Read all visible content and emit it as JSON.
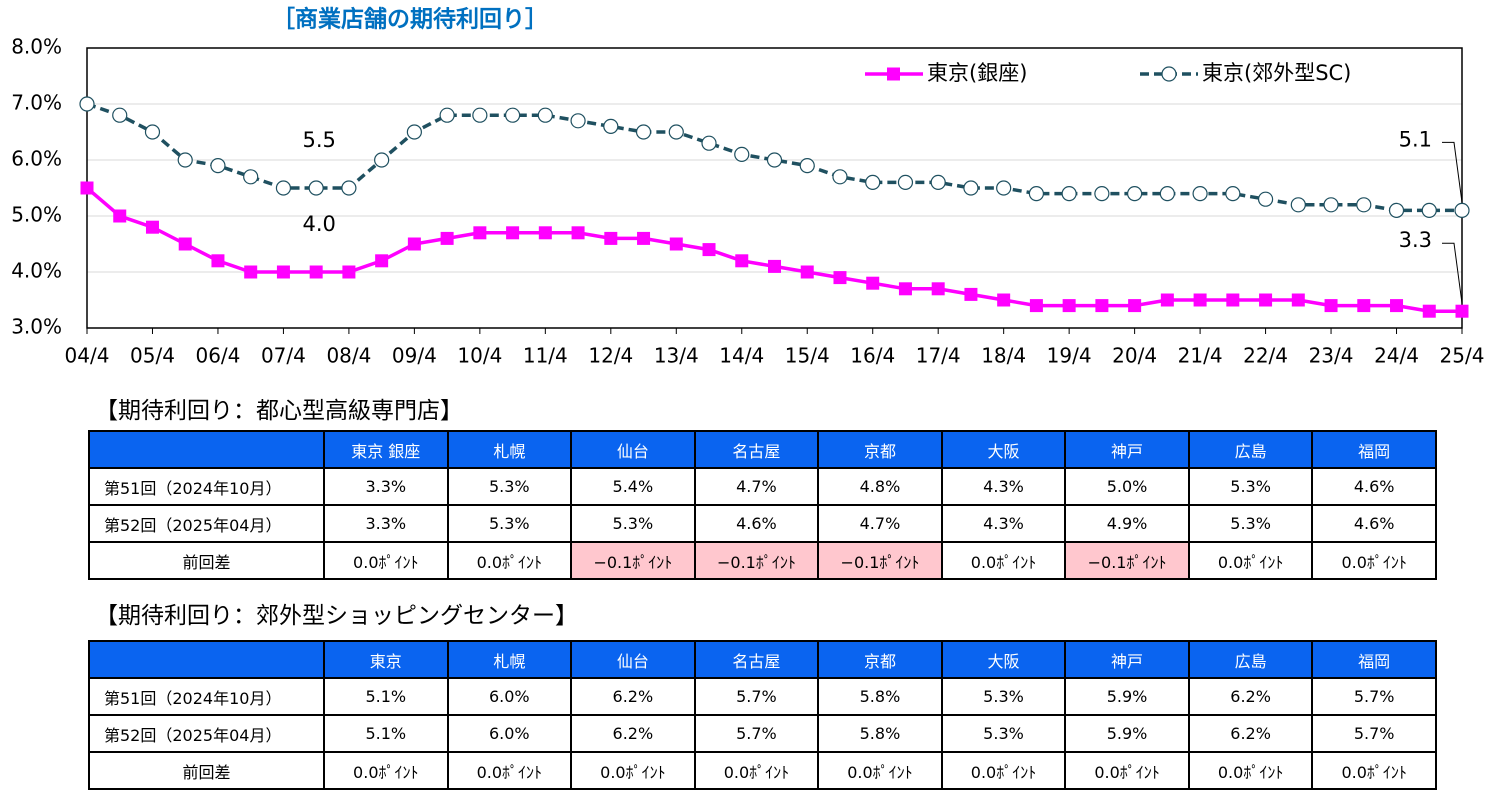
{
  "chart_data": {
    "type": "line",
    "title": "［商業店舗の期待利回り］",
    "categories": [
      "04/4",
      null,
      "05/4",
      null,
      "06/4",
      null,
      "07/4",
      null,
      "08/4",
      null,
      "09/4",
      null,
      "10/4",
      null,
      "11/4",
      null,
      "12/4",
      null,
      "13/4",
      null,
      "14/4",
      null,
      "15/4",
      null,
      "16/4",
      null,
      "17/4",
      null,
      "18/4",
      null,
      "19/4",
      null,
      "20/4",
      null,
      "21/4",
      null,
      "22/4",
      null,
      "23/4",
      null,
      "24/4",
      null,
      "25/4"
    ],
    "series": [
      {
        "name": "東京(銀座)",
        "color": "#ff00ff",
        "marker": "square",
        "values": [
          5.5,
          5.0,
          4.8,
          4.5,
          4.2,
          4.0,
          4.0,
          4.0,
          4.0,
          4.2,
          4.5,
          4.6,
          4.7,
          4.7,
          4.7,
          4.7,
          4.6,
          4.6,
          4.5,
          4.4,
          4.2,
          4.1,
          4.0,
          3.9,
          3.8,
          3.7,
          3.7,
          3.6,
          3.5,
          3.4,
          3.4,
          3.4,
          3.4,
          3.5,
          3.5,
          3.5,
          3.5,
          3.5,
          3.4,
          3.4,
          3.4,
          3.3,
          3.3
        ],
        "value_labels": [
          null,
          null,
          null,
          null,
          null,
          null,
          null,
          "4.0",
          null,
          null,
          null,
          null,
          null,
          null,
          null,
          null,
          null,
          null,
          null,
          null,
          null,
          null,
          null,
          null,
          null,
          null,
          null,
          null,
          null,
          null,
          null,
          null,
          null,
          null,
          null,
          null,
          null,
          null,
          null,
          null,
          null,
          null,
          "3.3"
        ]
      },
      {
        "name": "東京(郊外型SC)",
        "color": "#1f5060",
        "marker": "circle",
        "dashed": true,
        "values": [
          7.0,
          6.8,
          6.5,
          6.0,
          5.9,
          5.7,
          5.5,
          5.5,
          5.5,
          6.0,
          6.5,
          6.8,
          6.8,
          6.8,
          6.8,
          6.7,
          6.6,
          6.5,
          6.5,
          6.3,
          6.1,
          6.0,
          5.9,
          5.7,
          5.6,
          5.6,
          5.6,
          5.5,
          5.5,
          5.4,
          5.4,
          5.4,
          5.4,
          5.4,
          5.4,
          5.4,
          5.3,
          5.2,
          5.2,
          5.2,
          5.1,
          5.1,
          5.1
        ],
        "value_labels": [
          null,
          null,
          null,
          null,
          null,
          null,
          null,
          "5.5",
          null,
          null,
          null,
          null,
          null,
          null,
          null,
          null,
          null,
          null,
          null,
          null,
          null,
          null,
          null,
          null,
          null,
          null,
          null,
          null,
          null,
          null,
          null,
          null,
          null,
          null,
          null,
          null,
          null,
          null,
          null,
          null,
          null,
          null,
          "5.1"
        ]
      }
    ],
    "ylim": [
      3,
      8
    ],
    "yticks": [
      {
        "value": 3,
        "label": "3.0%"
      },
      {
        "value": 4,
        "label": "4.0%"
      },
      {
        "value": 5,
        "label": "5.0%"
      },
      {
        "value": 6,
        "label": "6.0%"
      },
      {
        "value": 7,
        "label": "7.0%"
      },
      {
        "value": 8,
        "label": "8.0%"
      }
    ],
    "grid": true,
    "legend": "upper right"
  },
  "tables": [
    {
      "title": "【期待利回り：都心型高級専門店】",
      "header_color": "#0a64f0",
      "highlight_color": "#ffc7ce",
      "columns": [
        "東京 銀座",
        "札幌",
        "仙台",
        "名古屋",
        "京都",
        "大阪",
        "神戸",
        "広島",
        "福岡"
      ],
      "rows": [
        {
          "label": "第51回（2024年10月）",
          "cells": [
            "3.3%",
            "5.3%",
            "5.4%",
            "4.7%",
            "4.8%",
            "4.3%",
            "5.0%",
            "5.3%",
            "4.6%"
          ]
        },
        {
          "label": "第52回（2025年04月）",
          "cells": [
            "3.3%",
            "5.3%",
            "5.3%",
            "4.6%",
            "4.7%",
            "4.3%",
            "4.9%",
            "5.3%",
            "4.6%"
          ]
        },
        {
          "label": "前回差",
          "cells": [
            "0.0ﾎﾟｲﾝﾄ",
            "0.0ﾎﾟｲﾝﾄ",
            "−0.1ﾎﾟｲﾝﾄ",
            "−0.1ﾎﾟｲﾝﾄ",
            "−0.1ﾎﾟｲﾝﾄ",
            "0.0ﾎﾟｲﾝﾄ",
            "−0.1ﾎﾟｲﾝﾄ",
            "0.0ﾎﾟｲﾝﾄ",
            "0.0ﾎﾟｲﾝﾄ"
          ],
          "highlight": [
            false,
            false,
            true,
            true,
            true,
            false,
            true,
            false,
            false
          ]
        }
      ]
    },
    {
      "title": "【期待利回り：郊外型ショッピングセンター】",
      "header_color": "#0a64f0",
      "highlight_color": "#ffc7ce",
      "columns": [
        "東京",
        "札幌",
        "仙台",
        "名古屋",
        "京都",
        "大阪",
        "神戸",
        "広島",
        "福岡"
      ],
      "rows": [
        {
          "label": "第51回（2024年10月）",
          "cells": [
            "5.1%",
            "6.0%",
            "6.2%",
            "5.7%",
            "5.8%",
            "5.3%",
            "5.9%",
            "6.2%",
            "5.7%"
          ]
        },
        {
          "label": "第52回（2025年04月）",
          "cells": [
            "5.1%",
            "6.0%",
            "6.2%",
            "5.7%",
            "5.8%",
            "5.3%",
            "5.9%",
            "6.2%",
            "5.7%"
          ]
        },
        {
          "label": "前回差",
          "cells": [
            "0.0ﾎﾟｲﾝﾄ",
            "0.0ﾎﾟｲﾝﾄ",
            "0.0ﾎﾟｲﾝﾄ",
            "0.0ﾎﾟｲﾝﾄ",
            "0.0ﾎﾟｲﾝﾄ",
            "0.0ﾎﾟｲﾝﾄ",
            "0.0ﾎﾟｲﾝﾄ",
            "0.0ﾎﾟｲﾝﾄ",
            "0.0ﾎﾟｲﾝﾄ"
          ]
        }
      ]
    }
  ]
}
